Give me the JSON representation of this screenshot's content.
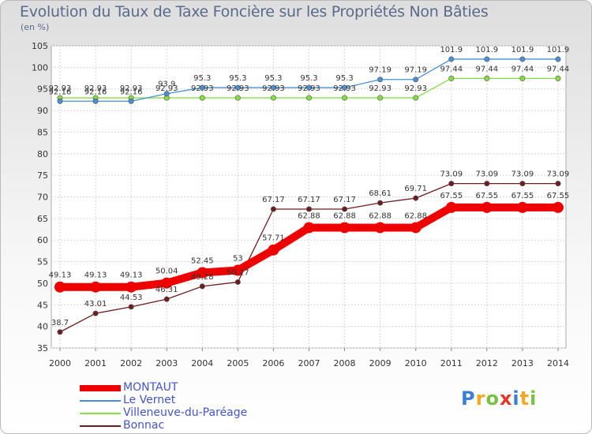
{
  "chart_data": {
    "type": "line",
    "title": "Evolution du Taux de Taxe Foncière sur les Propriétés Non Bâties",
    "unit_label": "(en %)",
    "x": [
      "2000",
      "2001",
      "2002",
      "2003",
      "2004",
      "2005",
      "2006",
      "2007",
      "2008",
      "2009",
      "2010",
      "2011",
      "2012",
      "2013",
      "2014"
    ],
    "ylim": [
      35,
      105
    ],
    "yticks": [
      "35",
      "40",
      "45",
      "50",
      "55",
      "60",
      "65",
      "70",
      "75",
      "80",
      "85",
      "90",
      "95",
      "100",
      "105"
    ],
    "grid": true,
    "legend_position": "bottom-left",
    "series": [
      {
        "name": "MONTAUT",
        "color": "#ee0000",
        "values": [
          49.13,
          49.13,
          49.13,
          50.04,
          52.45,
          53,
          57.71,
          62.88,
          62.88,
          62.88,
          62.88,
          67.55,
          67.55,
          67.55,
          67.55
        ],
        "labels": [
          "49.13",
          "49.13",
          "49.13",
          "50.04",
          "52.45",
          "53",
          "57.71",
          "62.88",
          "62.88",
          "62.88",
          "62.88",
          "67.55",
          "67.55",
          "67.55",
          "67.55"
        ]
      },
      {
        "name": "Le Vernet",
        "color": "#4a8fd0",
        "values": [
          92.16,
          92.16,
          92.16,
          93.9,
          95.3,
          95.3,
          95.3,
          95.3,
          95.3,
          97.19,
          97.19,
          101.9,
          101.9,
          101.9,
          101.9
        ],
        "labels": [
          "92.16",
          "92.16",
          "92.16",
          "93.9",
          "95.3",
          "95.3",
          "95.3",
          "95.3",
          "95.3",
          "97.19",
          "97.19",
          "101.9",
          "101.9",
          "101.9",
          "101.9"
        ]
      },
      {
        "name": "Villeneuve-du-Paréage",
        "color": "#88dd44",
        "values": [
          92.93,
          92.93,
          92.93,
          92.93,
          92.93,
          92.93,
          92.93,
          92.93,
          92.93,
          92.93,
          92.93,
          97.44,
          97.44,
          97.44,
          97.44
        ],
        "labels": [
          "92.93",
          "92.93",
          "92.93",
          "92.93",
          "92.93",
          "92.93",
          "92.93",
          "92.93",
          "92.93",
          "92.93",
          "92.93",
          "97.44",
          "97.44",
          "97.44",
          "97.44"
        ]
      },
      {
        "name": "Bonnac",
        "color": "#6b1e1e",
        "values": [
          38.7,
          43.01,
          44.53,
          46.31,
          49.28,
          50.27,
          67.17,
          67.17,
          67.17,
          68.61,
          69.71,
          73.09,
          73.09,
          73.09,
          73.09
        ],
        "labels": [
          "38.7",
          "43.01",
          "44.53",
          "46.31",
          "49.28",
          "50.27",
          "67.17",
          "67.17",
          "67.17",
          "68.61",
          "69.71",
          "73.09",
          "73.09",
          "73.09",
          "73.09"
        ]
      }
    ]
  },
  "logo": {
    "text": "Proxiti"
  },
  "colors": {
    "grid": "#d0d0d0",
    "axis": "#888888",
    "legend_text": "#4455cc"
  }
}
